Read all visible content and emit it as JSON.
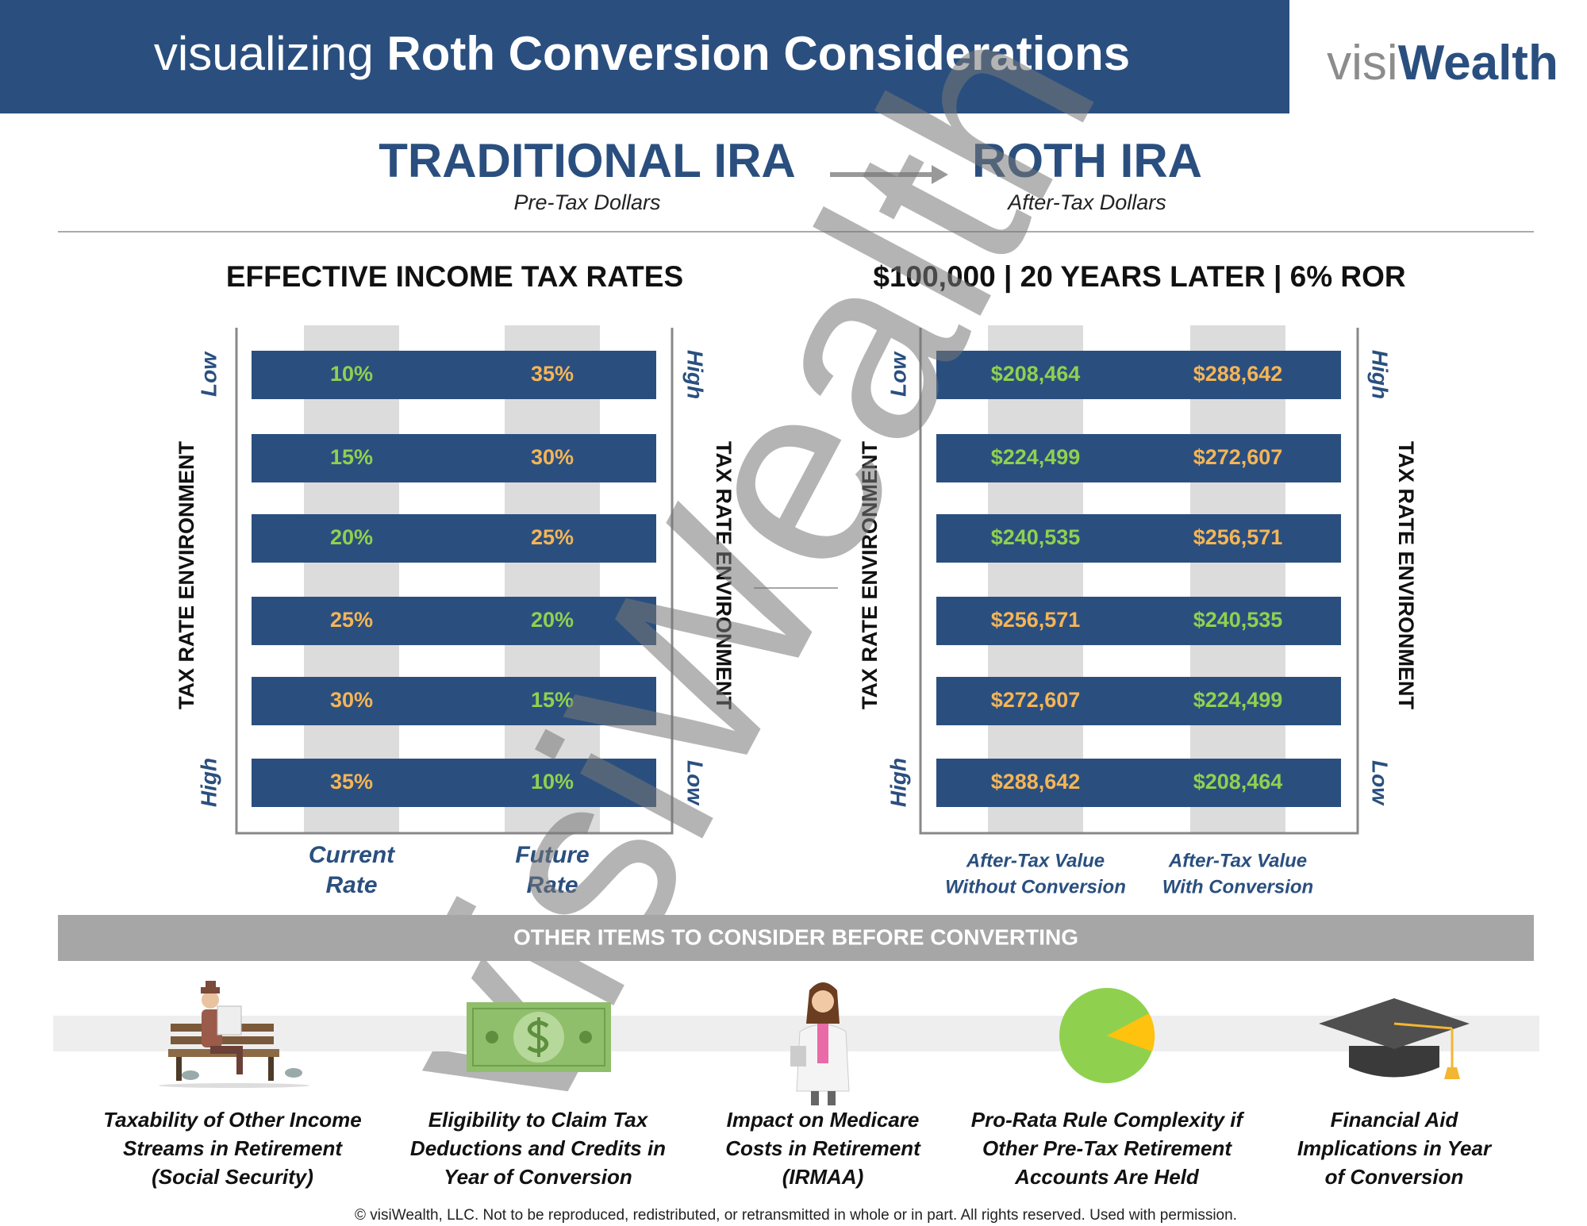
{
  "header": {
    "title_light": "visualizing",
    "title_bold": "Roth Conversion Considerations",
    "logo_part1": "visi",
    "logo_part2": "Wealth"
  },
  "conversion": {
    "from_title": "TRADITIONAL IRA",
    "from_subtitle": "Pre-Tax Dollars",
    "to_title": "ROTH IRA",
    "to_subtitle": "After-Tax Dollars"
  },
  "left_panel": {
    "title": "EFFECTIVE INCOME TAX RATES",
    "left_axis": {
      "label": "TAX RATE ENVIRONMENT",
      "top": "Low",
      "bottom": "High"
    },
    "right_axis": {
      "label": "TAX RATE ENVIRONMENT",
      "top": "High",
      "bottom": "Low"
    },
    "columns": [
      [
        "Current",
        "Rate"
      ],
      [
        "Future",
        "Rate"
      ]
    ],
    "rows": [
      [
        "10%",
        "35%"
      ],
      [
        "15%",
        "30%"
      ],
      [
        "20%",
        "25%"
      ],
      [
        "25%",
        "20%"
      ],
      [
        "30%",
        "15%"
      ],
      [
        "35%",
        "10%"
      ]
    ]
  },
  "right_panel": {
    "title": "$100,000 | 20 YEARS LATER | 6% ROR",
    "left_axis": {
      "label": "TAX RATE ENVIRONMENT",
      "top": "Low",
      "bottom": "High"
    },
    "right_axis": {
      "label": "TAX RATE ENVIRONMENT",
      "top": "High",
      "bottom": "Low"
    },
    "columns": [
      [
        "After-Tax Value",
        "Without Conversion"
      ],
      [
        "After-Tax Value",
        "With Conversion"
      ]
    ],
    "rows": [
      [
        "$208,464",
        "$288,642"
      ],
      [
        "$224,499",
        "$272,607"
      ],
      [
        "$240,535",
        "$256,571"
      ],
      [
        "$256,571",
        "$240,535"
      ],
      [
        "$272,607",
        "$224,499"
      ],
      [
        "$288,642",
        "$208,464"
      ]
    ]
  },
  "watermark": "visiWealth",
  "other_items": {
    "title": "OTHER ITEMS TO CONSIDER BEFORE CONVERTING",
    "items": [
      [
        "Taxability of Other Income",
        "Streams in Retirement",
        "(Social Security)"
      ],
      [
        "Eligibility to Claim Tax",
        "Deductions and Credits in",
        "Year of Conversion"
      ],
      [
        "Impact on Medicare",
        "Costs in Retirement",
        "(IRMAA)"
      ],
      [
        "Pro-Rata Rule Complexity if",
        "Other Pre-Tax Retirement",
        "Accounts Are Held"
      ],
      [
        "Financial Aid",
        "Implications in Year",
        "of Conversion"
      ]
    ]
  },
  "footer": "© visiWealth, LLC. Not to be reproduced, redistributed, or retransmitted in whole or in part. All rights reserved. Used with permission."
}
